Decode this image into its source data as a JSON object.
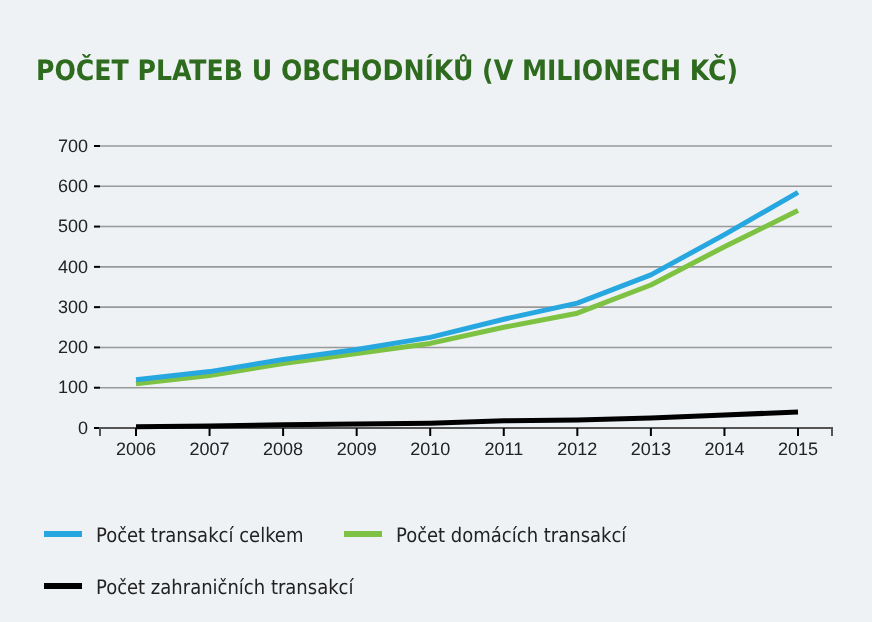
{
  "chart_data": {
    "type": "line",
    "title": "POČET PLATEB U OBCHODNÍKŮ (V MILIONECH KČ)",
    "categories": [
      "2006",
      "2007",
      "2008",
      "2009",
      "2010",
      "2011",
      "2012",
      "2013",
      "2014",
      "2015"
    ],
    "series": [
      {
        "name": "Počet transakcí celkem",
        "color": "#27a7e0",
        "values": [
          120,
          140,
          170,
          195,
          225,
          270,
          310,
          380,
          480,
          585
        ]
      },
      {
        "name": "Počet domácích transakcí",
        "color": "#7dc242",
        "values": [
          110,
          130,
          160,
          185,
          210,
          250,
          285,
          355,
          450,
          540
        ]
      },
      {
        "name": "Počet zahraničních transakcí",
        "color": "#000000",
        "values": [
          3,
          5,
          8,
          10,
          12,
          18,
          20,
          25,
          32,
          40
        ]
      }
    ],
    "ylim": [
      0,
      700
    ],
    "yticks": [
      0,
      100,
      200,
      300,
      400,
      500,
      600,
      700
    ],
    "grid": "y",
    "legend": "bottom",
    "marker": "none",
    "line_style": "solid"
  }
}
